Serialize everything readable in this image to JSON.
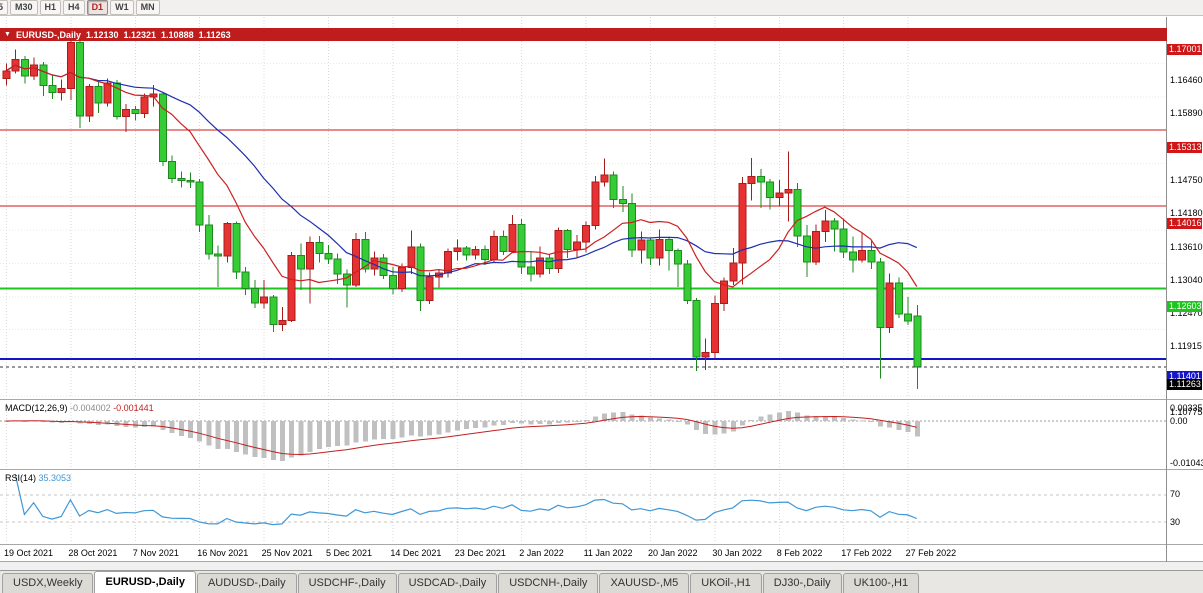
{
  "toolbar": {
    "timeframes": [
      {
        "label": "5",
        "active": false,
        "partial": true
      },
      {
        "label": "M30",
        "active": false
      },
      {
        "label": "H1",
        "active": false
      },
      {
        "label": "H4",
        "active": false
      },
      {
        "label": "D1",
        "active": true
      },
      {
        "label": "W1",
        "active": false
      },
      {
        "label": "MN",
        "active": false
      }
    ]
  },
  "chart_header": {
    "symbol": "EURUSD-,Daily",
    "open": "1.12130",
    "high": "1.12321",
    "low": "1.10888",
    "close": "1.11263",
    "color": "#bf1d1d"
  },
  "price_axis": {
    "labels": [
      {
        "p": 1.1646,
        "t": "1.16460"
      },
      {
        "p": 1.1589,
        "t": "1.15890"
      },
      {
        "p": 1.1475,
        "t": "1.14750"
      },
      {
        "p": 1.1418,
        "t": "1.14180"
      },
      {
        "p": 1.1361,
        "t": "1.13610"
      },
      {
        "p": 1.1304,
        "t": "1.13040"
      },
      {
        "p": 1.1247,
        "t": "1.12470"
      },
      {
        "p": 1.11915,
        "t": "1.11915"
      },
      {
        "p": 1.10775,
        "t": "1.10775"
      }
    ]
  },
  "hlines": [
    {
      "price": 1.17001,
      "label": "1.17001",
      "color": "#d01616",
      "thickness": 1
    },
    {
      "price": 1.15313,
      "label": "1.15313",
      "color": "#d01616",
      "thickness": 1
    },
    {
      "price": 1.14016,
      "label": "1.14016",
      "color": "#d01616",
      "thickness": 1
    },
    {
      "price": 1.12603,
      "label": "1.12603",
      "color": "#1fc51f",
      "thickness": 2
    },
    {
      "price": 1.11401,
      "label": "1.11401",
      "color": "#1414c8",
      "thickness": 2
    }
  ],
  "current_price": {
    "p": 1.11263,
    "t": "1.11263",
    "color": "#000000"
  },
  "chart_data": {
    "type": "candlestick",
    "symbol": "EURUSD",
    "timeframe": "Daily",
    "title": "EURUSD-,Daily 1.12130 1.12321 1.10888 1.11263",
    "price_range": [
      1.1073,
      1.1725
    ],
    "up_color": "#e63232",
    "down_color": "#35cc35",
    "up_stroke": "#aa1c1c",
    "down_stroke": "#1c8a1c",
    "ma_fast": {
      "period": 10,
      "color": "#cc2020"
    },
    "ma_slow": {
      "period": 21,
      "color": "#1f2fae"
    },
    "x_ticks": [
      {
        "i": 0,
        "label": "19 Oct 2021"
      },
      {
        "i": 7,
        "label": "28 Oct 2021"
      },
      {
        "i": 14,
        "label": "7 Nov 2021"
      },
      {
        "i": 21,
        "label": "16 Nov 2021"
      },
      {
        "i": 28,
        "label": "25 Nov 2021"
      },
      {
        "i": 35,
        "label": "5 Dec 2021"
      },
      {
        "i": 42,
        "label": "14 Dec 2021"
      },
      {
        "i": 49,
        "label": "23 Dec 2021"
      },
      {
        "i": 56,
        "label": "2 Jan 2022"
      },
      {
        "i": 63,
        "label": "11 Jan 2022"
      },
      {
        "i": 70,
        "label": "20 Jan 2022"
      },
      {
        "i": 77,
        "label": "30 Jan 2022"
      },
      {
        "i": 84,
        "label": "8 Feb 2022"
      },
      {
        "i": 91,
        "label": "17 Feb 2022"
      },
      {
        "i": 98,
        "label": "27 Feb 2022"
      }
    ],
    "candles": [
      [
        1.162,
        1.1645,
        1.1608,
        1.1633
      ],
      [
        1.1633,
        1.1669,
        1.1628,
        1.1652
      ],
      [
        1.1652,
        1.1658,
        1.1611,
        1.1624
      ],
      [
        1.1624,
        1.1656,
        1.1617,
        1.1643
      ],
      [
        1.1643,
        1.1648,
        1.159,
        1.1608
      ],
      [
        1.1608,
        1.1626,
        1.1585,
        1.1596
      ],
      [
        1.1596,
        1.1618,
        1.1582,
        1.1603
      ],
      [
        1.1603,
        1.1692,
        1.1583,
        1.1681
      ],
      [
        1.1681,
        1.1685,
        1.1535,
        1.1556
      ],
      [
        1.1556,
        1.161,
        1.1545,
        1.1606
      ],
      [
        1.1606,
        1.1616,
        1.1561,
        1.1578
      ],
      [
        1.1578,
        1.162,
        1.1572,
        1.1612
      ],
      [
        1.1612,
        1.1617,
        1.155,
        1.1555
      ],
      [
        1.1555,
        1.1576,
        1.1528,
        1.1567
      ],
      [
        1.1567,
        1.1573,
        1.1548,
        1.156
      ],
      [
        1.156,
        1.1594,
        1.1552,
        1.1588
      ],
      [
        1.1588,
        1.1609,
        1.1572,
        1.1593
      ],
      [
        1.1593,
        1.1595,
        1.147,
        1.1478
      ],
      [
        1.1478,
        1.1488,
        1.1441,
        1.1449
      ],
      [
        1.1449,
        1.1461,
        1.1433,
        1.1445
      ],
      [
        1.1445,
        1.1459,
        1.1432,
        1.1443
      ],
      [
        1.1443,
        1.1448,
        1.1357,
        1.1369
      ],
      [
        1.1369,
        1.1386,
        1.131,
        1.1319
      ],
      [
        1.1319,
        1.1334,
        1.1263,
        1.1316
      ],
      [
        1.1316,
        1.1374,
        1.1305,
        1.1372
      ],
      [
        1.1372,
        1.1375,
        1.1277,
        1.1289
      ],
      [
        1.1289,
        1.1297,
        1.1249,
        1.126
      ],
      [
        1.126,
        1.1275,
        1.1227,
        1.1236
      ],
      [
        1.1236,
        1.1275,
        1.1226,
        1.1246
      ],
      [
        1.1246,
        1.1249,
        1.1186,
        1.1199
      ],
      [
        1.1199,
        1.1229,
        1.1188,
        1.1206
      ],
      [
        1.1206,
        1.1323,
        1.1203,
        1.1317
      ],
      [
        1.1317,
        1.1337,
        1.1258,
        1.1294
      ],
      [
        1.1294,
        1.1349,
        1.1235,
        1.1339
      ],
      [
        1.1339,
        1.135,
        1.1305,
        1.132
      ],
      [
        1.132,
        1.1335,
        1.1302,
        1.1311
      ],
      [
        1.1311,
        1.132,
        1.1268,
        1.1285
      ],
      [
        1.1285,
        1.1293,
        1.1228,
        1.1266
      ],
      [
        1.1266,
        1.1355,
        1.1263,
        1.1344
      ],
      [
        1.1344,
        1.1357,
        1.1288,
        1.1294
      ],
      [
        1.1294,
        1.1324,
        1.1283,
        1.1313
      ],
      [
        1.1313,
        1.1319,
        1.1277,
        1.1283
      ],
      [
        1.1283,
        1.1297,
        1.125,
        1.126
      ],
      [
        1.126,
        1.1303,
        1.1254,
        1.1296
      ],
      [
        1.1296,
        1.136,
        1.1285,
        1.1331
      ],
      [
        1.1331,
        1.1337,
        1.1222,
        1.124
      ],
      [
        1.124,
        1.1288,
        1.1234,
        1.128
      ],
      [
        1.128,
        1.1294,
        1.1262,
        1.1287
      ],
      [
        1.1287,
        1.1329,
        1.1279,
        1.1324
      ],
      [
        1.1324,
        1.1344,
        1.1308,
        1.133
      ],
      [
        1.133,
        1.1333,
        1.1308,
        1.1318
      ],
      [
        1.1318,
        1.1333,
        1.131,
        1.1327
      ],
      [
        1.1327,
        1.1334,
        1.1301,
        1.131
      ],
      [
        1.131,
        1.136,
        1.1304,
        1.1349
      ],
      [
        1.1349,
        1.136,
        1.1318,
        1.1324
      ],
      [
        1.1324,
        1.1386,
        1.1321,
        1.137
      ],
      [
        1.137,
        1.1379,
        1.1285,
        1.1297
      ],
      [
        1.1297,
        1.1323,
        1.1272,
        1.1285
      ],
      [
        1.1285,
        1.1332,
        1.1279,
        1.1313
      ],
      [
        1.1313,
        1.1319,
        1.1285,
        1.1295
      ],
      [
        1.1295,
        1.1365,
        1.1287,
        1.136
      ],
      [
        1.136,
        1.1362,
        1.1313,
        1.1327
      ],
      [
        1.1327,
        1.1352,
        1.1314,
        1.134
      ],
      [
        1.134,
        1.1375,
        1.1322,
        1.1368
      ],
      [
        1.1368,
        1.1453,
        1.1361,
        1.1443
      ],
      [
        1.1443,
        1.1483,
        1.1435,
        1.1455
      ],
      [
        1.1455,
        1.1461,
        1.1398,
        1.1413
      ],
      [
        1.1413,
        1.1436,
        1.1391,
        1.1406
      ],
      [
        1.1406,
        1.1423,
        1.1314,
        1.1326
      ],
      [
        1.1326,
        1.1358,
        1.1303,
        1.1343
      ],
      [
        1.1343,
        1.1347,
        1.1301,
        1.1313
      ],
      [
        1.1313,
        1.1361,
        1.13,
        1.1344
      ],
      [
        1.1344,
        1.1349,
        1.1291,
        1.1325
      ],
      [
        1.1325,
        1.1329,
        1.1263,
        1.1302
      ],
      [
        1.1302,
        1.1309,
        1.1234,
        1.124
      ],
      [
        1.124,
        1.1244,
        1.1119,
        1.1143
      ],
      [
        1.1143,
        1.1175,
        1.1121,
        1.1151
      ],
      [
        1.1151,
        1.1248,
        1.1141,
        1.1235
      ],
      [
        1.1235,
        1.1279,
        1.1222,
        1.1273
      ],
      [
        1.1273,
        1.133,
        1.1266,
        1.1304
      ],
      [
        1.1304,
        1.1451,
        1.1267,
        1.144
      ],
      [
        1.144,
        1.1484,
        1.1411,
        1.1452
      ],
      [
        1.1452,
        1.1465,
        1.1398,
        1.1443
      ],
      [
        1.1443,
        1.1448,
        1.1396,
        1.1416
      ],
      [
        1.1416,
        1.1446,
        1.1402,
        1.1424
      ],
      [
        1.1424,
        1.1495,
        1.1375,
        1.143
      ],
      [
        1.143,
        1.1441,
        1.1331,
        1.135
      ],
      [
        1.135,
        1.1369,
        1.128,
        1.1306
      ],
      [
        1.1306,
        1.137,
        1.1301,
        1.1358
      ],
      [
        1.1358,
        1.1395,
        1.134,
        1.1376
      ],
      [
        1.1376,
        1.1381,
        1.1324,
        1.1362
      ],
      [
        1.1362,
        1.138,
        1.1313,
        1.1323
      ],
      [
        1.1323,
        1.1349,
        1.1288,
        1.1309
      ],
      [
        1.1309,
        1.1355,
        1.1305,
        1.1325
      ],
      [
        1.1325,
        1.1342,
        1.1294,
        1.1306
      ],
      [
        1.1306,
        1.1313,
        1.1106,
        1.1194
      ],
      [
        1.1194,
        1.1286,
        1.1184,
        1.127
      ],
      [
        1.127,
        1.1279,
        1.121,
        1.1217
      ],
      [
        1.1217,
        1.1246,
        1.1198,
        1.1205
      ],
      [
        1.1213,
        1.12321,
        1.10888,
        1.11263
      ]
    ],
    "macd": {
      "name": "MACD(12,26,9)",
      "params": "12,26,9",
      "value": "-0.004002",
      "signal_value": "-0.001441",
      "axis_labels": [
        "0.00335",
        "0.00",
        "-0.01043"
      ],
      "range": [
        -0.0115,
        0.0045
      ],
      "histogram_color": "#c0c0c0",
      "signal_color": "#c22020"
    },
    "rsi": {
      "name": "RSI(14)",
      "period": 14,
      "value": "35.3053",
      "levels": [
        "70",
        "30"
      ],
      "range": [
        0,
        100
      ],
      "color": "#3f97d6"
    }
  },
  "bottom_tabs": {
    "tabs": [
      {
        "label": "USDX,Weekly",
        "active": false
      },
      {
        "label": "EURUSD-,Daily",
        "active": true
      },
      {
        "label": "AUDUSD-,Daily",
        "active": false
      },
      {
        "label": "USDCHF-,Daily",
        "active": false
      },
      {
        "label": "USDCAD-,Daily",
        "active": false
      },
      {
        "label": "USDCNH-,Daily",
        "active": false
      },
      {
        "label": "XAUUSD-,M5",
        "active": false
      },
      {
        "label": "UKOil-,H1",
        "active": false
      },
      {
        "label": "DJ30-,Daily",
        "active": false
      },
      {
        "label": "UK100-,H1",
        "active": false
      }
    ]
  }
}
